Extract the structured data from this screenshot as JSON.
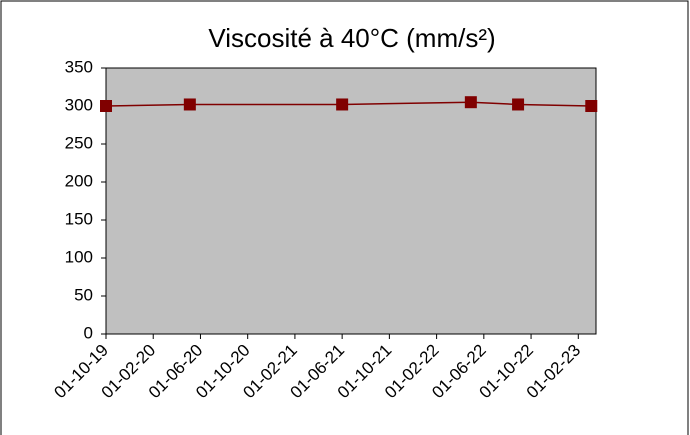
{
  "chart_data": {
    "type": "line",
    "title": "Viscosité à 40°C (mm/s²)",
    "series": [
      {
        "color": "#800000",
        "x": [
          0,
          7.1,
          20,
          30.9,
          34.9,
          41.1
        ],
        "values": [
          300,
          302,
          302,
          305,
          302,
          300
        ]
      }
    ],
    "xlim": [
      0,
      41.5
    ],
    "xticks": [
      {
        "value": 0,
        "label": "01-10-19"
      },
      {
        "value": 4,
        "label": "01-02-20"
      },
      {
        "value": 8,
        "label": "01-06-20"
      },
      {
        "value": 12,
        "label": "01-10-20"
      },
      {
        "value": 16,
        "label": "01-02-21"
      },
      {
        "value": 20,
        "label": "01-06-21"
      },
      {
        "value": 24,
        "label": "01-10-21"
      },
      {
        "value": 28,
        "label": "01-02-22"
      },
      {
        "value": 32,
        "label": "01-06-22"
      },
      {
        "value": 36,
        "label": "01-10-22"
      },
      {
        "value": 40,
        "label": "01-02-23"
      }
    ],
    "ylim": [
      0,
      350
    ],
    "yticks": [
      0,
      50,
      100,
      150,
      200,
      250,
      300,
      350
    ],
    "plot_background": "#c0c0c0"
  }
}
